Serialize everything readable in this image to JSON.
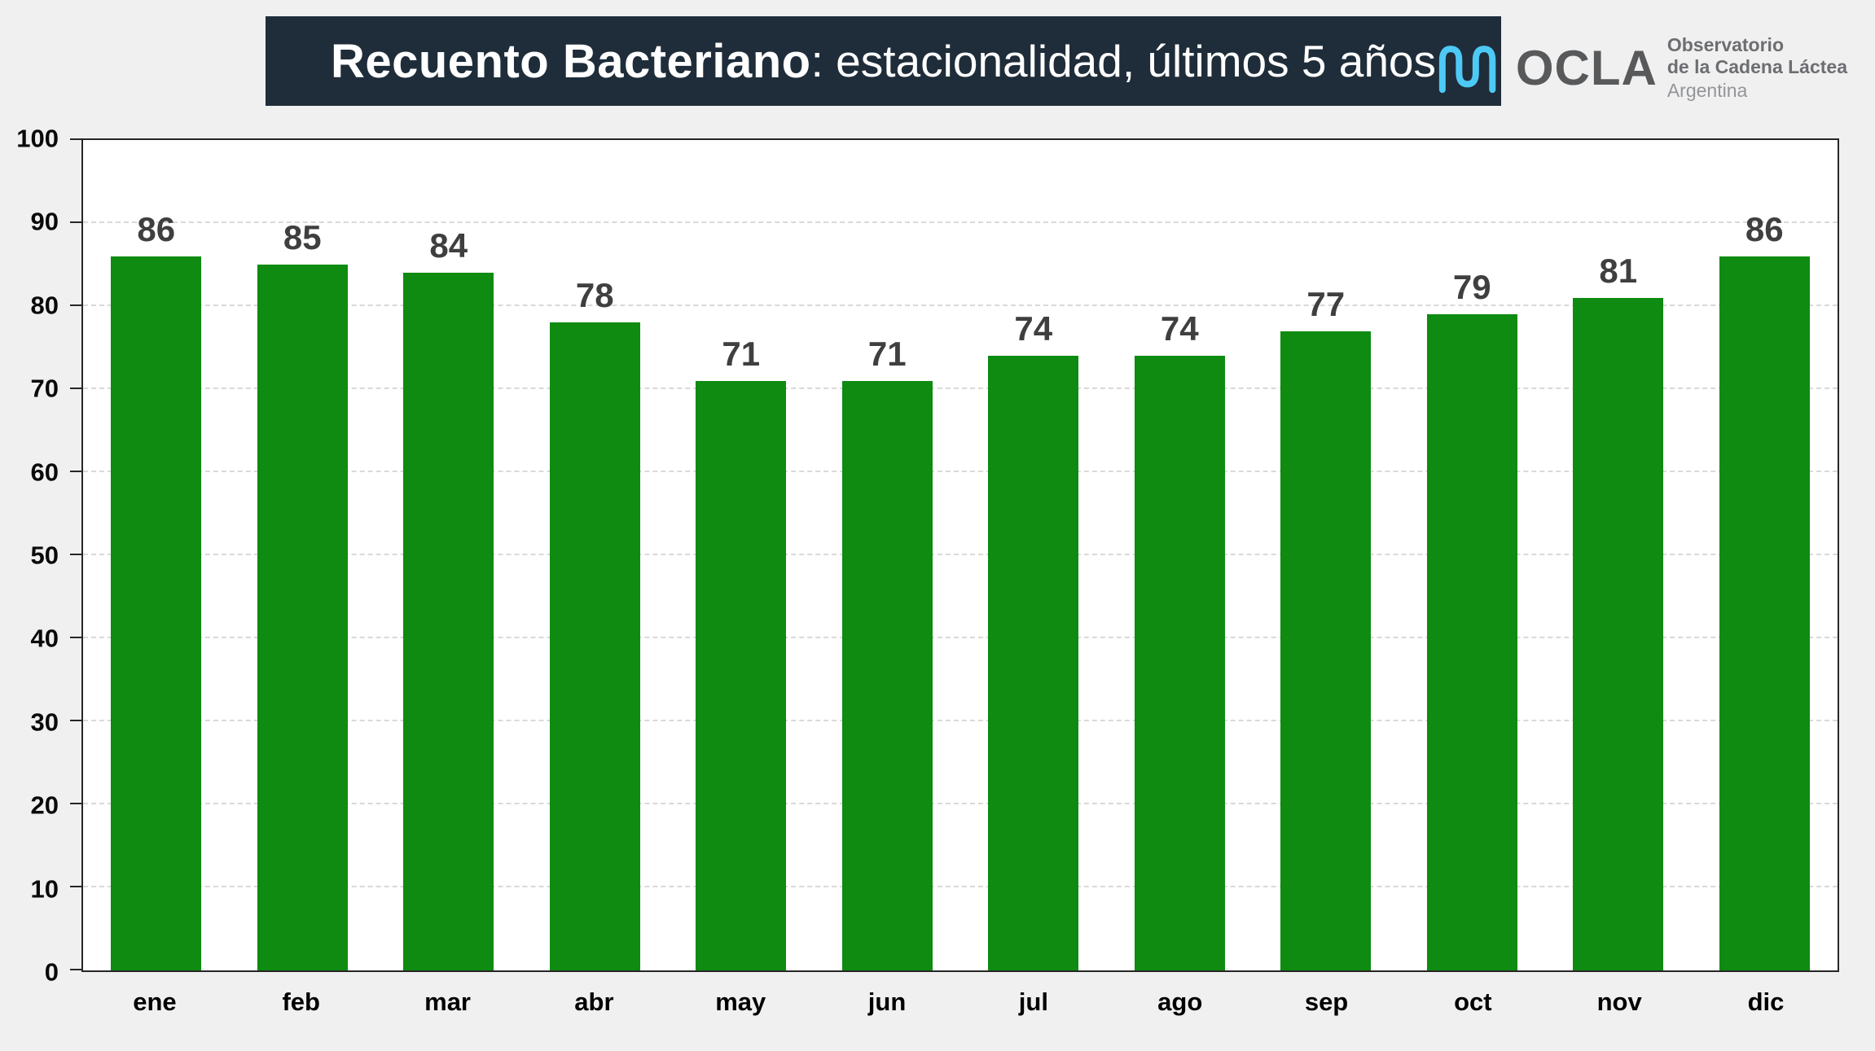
{
  "title": {
    "main": "Recuento Bacteriano",
    "subtitle": ": estacionalidad, últimos 5 años"
  },
  "logo": {
    "name": "OCLA",
    "org_line1": "Observatorio",
    "org_line2": "de la Cadena Láctea",
    "org_line3": "Argentina",
    "wave_icon": "wave-icon"
  },
  "chart_data": {
    "type": "bar",
    "title": "Recuento Bacteriano: estacionalidad, últimos 5 años",
    "categories": [
      "ene",
      "feb",
      "mar",
      "abr",
      "may",
      "jun",
      "jul",
      "ago",
      "sep",
      "oct",
      "nov",
      "dic"
    ],
    "values": [
      86,
      85,
      84,
      78,
      71,
      71,
      74,
      74,
      77,
      79,
      81,
      86
    ],
    "xlabel": "",
    "ylabel": "",
    "ylim": [
      0,
      100
    ],
    "ytick_step": 10,
    "grid": "horizontal-dashed",
    "legend": "none",
    "bar_color": "#0e8b10"
  },
  "colors": {
    "page_background": "#f0f0f1",
    "plot_background": "#ffffff",
    "banner_background": "#1f2d3a",
    "banner_text": "#ffffff",
    "bar": "#0e8b10",
    "value_label": "#3f3f3f",
    "axis_text": "#000000",
    "gridline": "#d9d9d9",
    "logo_blue": "#4ec9f5",
    "logo_gray": "#58595b"
  }
}
